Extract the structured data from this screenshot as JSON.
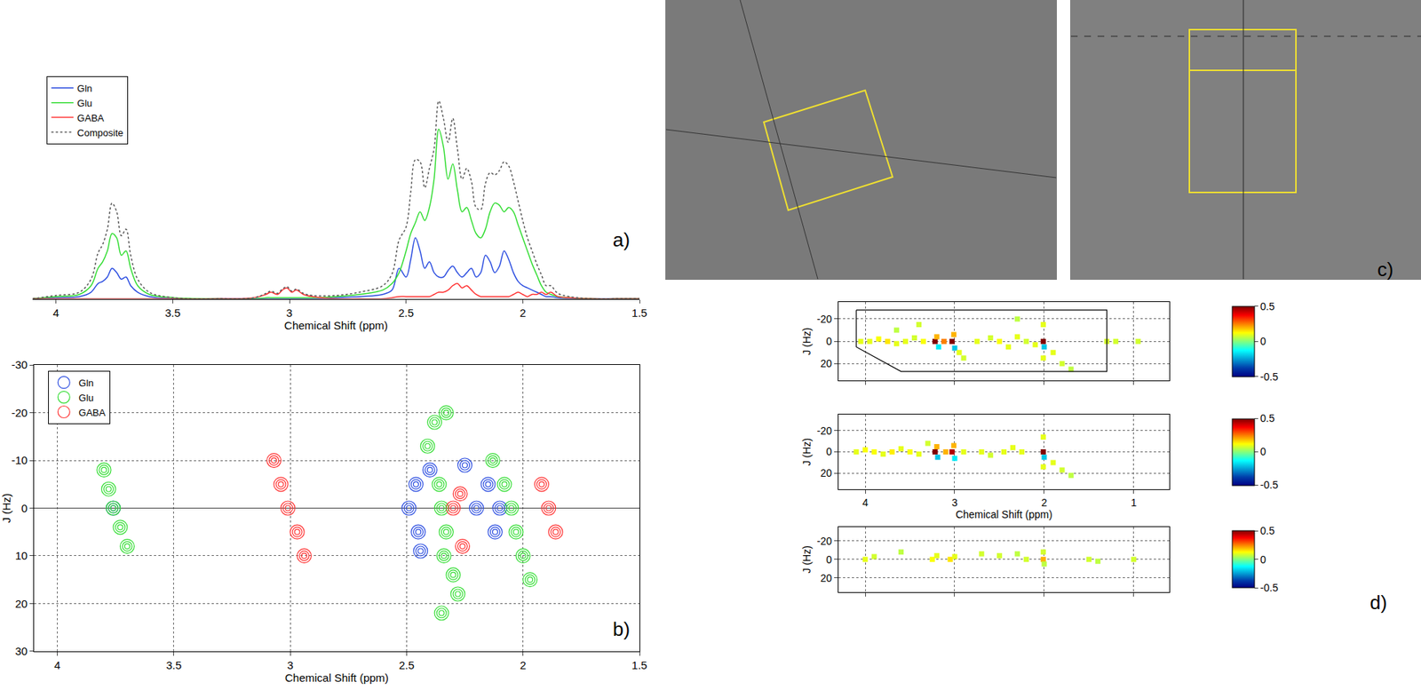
{
  "chart_data": [
    {
      "type": "line",
      "label": "a)",
      "x_label": "Chemical Shift (ppm)",
      "x": [
        4.1,
        4.0,
        3.9,
        3.85,
        3.82,
        3.8,
        3.78,
        3.76,
        3.74,
        3.72,
        3.7,
        3.68,
        3.65,
        3.6,
        3.5,
        3.3,
        3.15,
        3.1,
        3.08,
        3.05,
        3.03,
        3.01,
        2.99,
        2.97,
        2.94,
        2.9,
        2.8,
        2.7,
        2.6,
        2.56,
        2.53,
        2.5,
        2.48,
        2.46,
        2.44,
        2.42,
        2.4,
        2.38,
        2.36,
        2.34,
        2.32,
        2.3,
        2.28,
        2.26,
        2.24,
        2.22,
        2.2,
        2.18,
        2.16,
        2.14,
        2.12,
        2.1,
        2.08,
        2.06,
        2.04,
        2.02,
        2.0,
        1.98,
        1.96,
        1.94,
        1.92,
        1.9,
        1.88,
        1.85,
        1.8,
        1.7,
        1.6,
        1.5
      ],
      "series": [
        {
          "name": "Gln",
          "color": "#2b4de0",
          "line_style": "solid",
          "values": [
            0,
            0.005,
            0.01,
            0.03,
            0.07,
            0.08,
            0.1,
            0.14,
            0.12,
            0.09,
            0.1,
            0.06,
            0.03,
            0.01,
            0,
            0,
            0,
            0,
            0,
            0,
            0,
            0,
            0,
            0,
            0,
            0,
            0.005,
            0.01,
            0.02,
            0.04,
            0.14,
            0.1,
            0.18,
            0.28,
            0.22,
            0.14,
            0.17,
            0.12,
            0.1,
            0.1,
            0.13,
            0.15,
            0.12,
            0.1,
            0.12,
            0.14,
            0.1,
            0.12,
            0.2,
            0.17,
            0.12,
            0.15,
            0.22,
            0.18,
            0.12,
            0.08,
            0.06,
            0.05,
            0.04,
            0.03,
            0.02,
            0.01,
            0.01,
            0.005,
            0,
            0,
            0,
            0
          ]
        },
        {
          "name": "Glu",
          "color": "#33dd33",
          "line_style": "solid",
          "values": [
            0,
            0.01,
            0.02,
            0.06,
            0.14,
            0.17,
            0.22,
            0.3,
            0.28,
            0.2,
            0.22,
            0.14,
            0.06,
            0.02,
            0.005,
            0,
            0,
            0.005,
            0.005,
            0.005,
            0.005,
            0.005,
            0.005,
            0.005,
            0.005,
            0.005,
            0.01,
            0.02,
            0.04,
            0.07,
            0.12,
            0.22,
            0.3,
            0.35,
            0.4,
            0.36,
            0.42,
            0.55,
            0.78,
            0.7,
            0.55,
            0.62,
            0.5,
            0.4,
            0.42,
            0.36,
            0.3,
            0.28,
            0.32,
            0.4,
            0.44,
            0.43,
            0.4,
            0.42,
            0.4,
            0.34,
            0.28,
            0.22,
            0.16,
            0.11,
            0.06,
            0.03,
            0.02,
            0.01,
            0.005,
            0,
            0,
            0
          ]
        },
        {
          "name": "GABA",
          "color": "#ff3333",
          "line_style": "solid",
          "values": [
            0,
            0,
            0,
            0,
            0,
            0,
            0,
            0,
            0,
            0,
            0,
            0,
            0,
            0,
            0,
            0,
            0.005,
            0.02,
            0.03,
            0.02,
            0.04,
            0.05,
            0.03,
            0.04,
            0.02,
            0.01,
            0,
            0,
            0,
            0.005,
            0.01,
            0.01,
            0.01,
            0.01,
            0.01,
            0.01,
            0.01,
            0.02,
            0.03,
            0.03,
            0.04,
            0.06,
            0.07,
            0.05,
            0.06,
            0.04,
            0.02,
            0.01,
            0.01,
            0.01,
            0.01,
            0.01,
            0.01,
            0.01,
            0.02,
            0.03,
            0.02,
            0.01,
            0.02,
            0.02,
            0.03,
            0.02,
            0.03,
            0.01,
            0.005,
            0,
            0,
            0
          ]
        },
        {
          "name": "Composite",
          "color": "#555555",
          "line_style": "dot",
          "values": [
            0,
            0.015,
            0.03,
            0.09,
            0.21,
            0.25,
            0.32,
            0.44,
            0.4,
            0.29,
            0.32,
            0.2,
            0.09,
            0.03,
            0.005,
            0,
            0.005,
            0.025,
            0.035,
            0.025,
            0.045,
            0.055,
            0.035,
            0.045,
            0.025,
            0.015,
            0.015,
            0.03,
            0.06,
            0.115,
            0.27,
            0.33,
            0.49,
            0.64,
            0.63,
            0.51,
            0.6,
            0.69,
            0.91,
            0.83,
            0.72,
            0.83,
            0.69,
            0.55,
            0.6,
            0.54,
            0.42,
            0.41,
            0.53,
            0.58,
            0.57,
            0.59,
            0.63,
            0.61,
            0.54,
            0.45,
            0.36,
            0.28,
            0.22,
            0.16,
            0.11,
            0.06,
            0.06,
            0.025,
            0.01,
            0,
            0,
            0
          ]
        }
      ],
      "xlim": [
        4.1,
        1.5
      ],
      "xticks": [
        4,
        3.5,
        3,
        2.5,
        2,
        1.5
      ],
      "ylim": [
        0,
        1.05
      ],
      "tick_labels": "x",
      "legend": "top left"
    },
    {
      "type": "contour",
      "label": "b)",
      "x_label": "Chemical Shift (ppm)",
      "y_label": "J (Hz)",
      "series": [
        {
          "name": "Gln",
          "color": "#2b4de0",
          "peaks": [
            [
              3.76,
              0
            ],
            [
              2.49,
              0
            ],
            [
              2.46,
              -5
            ],
            [
              2.45,
              5
            ],
            [
              2.44,
              9
            ],
            [
              2.4,
              -8
            ],
            [
              2.25,
              -9
            ],
            [
              2.2,
              0
            ],
            [
              2.15,
              -5
            ],
            [
              2.12,
              5
            ],
            [
              2.1,
              0
            ]
          ]
        },
        {
          "name": "Glu",
          "color": "#33dd33",
          "peaks": [
            [
              3.8,
              -8
            ],
            [
              3.78,
              -4
            ],
            [
              3.76,
              0
            ],
            [
              3.73,
              4
            ],
            [
              3.7,
              8
            ],
            [
              2.41,
              -13
            ],
            [
              2.38,
              -18
            ],
            [
              2.36,
              -5
            ],
            [
              2.35,
              0
            ],
            [
              2.33,
              5
            ],
            [
              2.34,
              10
            ],
            [
              2.3,
              14
            ],
            [
              2.28,
              18
            ],
            [
              2.33,
              -20
            ],
            [
              2.13,
              -10
            ],
            [
              2.08,
              -5
            ],
            [
              2.05,
              0
            ],
            [
              2.03,
              5
            ],
            [
              2.0,
              10
            ],
            [
              1.97,
              15
            ],
            [
              2.35,
              22
            ]
          ]
        },
        {
          "name": "GABA",
          "color": "#ff3333",
          "peaks": [
            [
              3.07,
              -10
            ],
            [
              3.04,
              -5
            ],
            [
              3.01,
              0
            ],
            [
              2.97,
              5
            ],
            [
              2.94,
              10
            ],
            [
              2.3,
              0
            ],
            [
              2.27,
              -3
            ],
            [
              2.26,
              8
            ],
            [
              1.92,
              -5
            ],
            [
              1.89,
              0
            ],
            [
              1.86,
              5
            ]
          ]
        }
      ],
      "xlim": [
        4.1,
        1.5
      ],
      "xticks": [
        4,
        3.5,
        3,
        2.5,
        2,
        1.5
      ],
      "ylim": [
        30,
        -30
      ],
      "yticks": [
        -30,
        -20,
        -10,
        0,
        10,
        20,
        30
      ],
      "grid": true,
      "legend": "top left"
    },
    {
      "type": "image",
      "label": "c)"
    },
    {
      "type": "heatmap",
      "y_label": "J (Hz)",
      "cells": [
        [
          4.05,
          0,
          0.1
        ],
        [
          3.95,
          0,
          0.1
        ],
        [
          3.85,
          -2,
          0.12
        ],
        [
          3.75,
          0,
          0.15
        ],
        [
          3.65,
          2,
          0.1
        ],
        [
          3.55,
          0,
          0.1
        ],
        [
          3.45,
          -3,
          0.08
        ],
        [
          3.35,
          0,
          0.12
        ],
        [
          3.22,
          0,
          0.5
        ],
        [
          3.2,
          -4,
          0.2
        ],
        [
          3.18,
          5,
          -0.15
        ],
        [
          3.12,
          0,
          0.25
        ],
        [
          3.03,
          0,
          0.5
        ],
        [
          3.01,
          -6,
          0.2
        ],
        [
          3.0,
          6,
          -0.2
        ],
        [
          2.95,
          10,
          0.1
        ],
        [
          2.9,
          15,
          0.08
        ],
        [
          2.75,
          0,
          0.1
        ],
        [
          2.6,
          -3,
          0.08
        ],
        [
          2.5,
          0,
          0.12
        ],
        [
          2.4,
          5,
          0.1
        ],
        [
          2.3,
          -4,
          0.1
        ],
        [
          2.2,
          0,
          0.08
        ],
        [
          2.1,
          3,
          0.1
        ],
        [
          2.01,
          0,
          0.5
        ],
        [
          2.01,
          -15,
          0.1
        ],
        [
          2.01,
          15,
          0.1
        ],
        [
          2.0,
          5,
          -0.2
        ],
        [
          1.9,
          10,
          0.1
        ],
        [
          1.8,
          20,
          0.08
        ],
        [
          1.7,
          25,
          0.06
        ],
        [
          1.3,
          0,
          0.08
        ],
        [
          1.2,
          0,
          0.08
        ],
        [
          0.95,
          0,
          0.08
        ],
        [
          3.4,
          -15,
          0.08
        ],
        [
          2.3,
          -20,
          0.06
        ],
        [
          3.65,
          -10,
          0.06
        ]
      ],
      "region": {
        "x": [
          4.1,
          1.3,
          1.3,
          3.6,
          4.1,
          4.1
        ],
        "y": [
          -28,
          -28,
          27,
          27,
          5,
          -28
        ]
      },
      "xlim": [
        4.3,
        0.6
      ],
      "xticks": [
        4,
        3,
        2,
        1
      ],
      "ylim": [
        35,
        -35
      ],
      "yticks": [
        -20,
        0,
        20
      ],
      "colorbar": {
        "range": [
          -0.5,
          0.5
        ],
        "ticks": [
          -0.5,
          0,
          0.5
        ]
      },
      "grid": true,
      "tick_labels": "y"
    },
    {
      "type": "heatmap",
      "x_label": "Chemical Shift (ppm)",
      "y_label": "J (Hz)",
      "cells": [
        [
          4.1,
          0,
          0.1
        ],
        [
          4.0,
          -2,
          0.12
        ],
        [
          3.9,
          0,
          0.12
        ],
        [
          3.8,
          2,
          0.1
        ],
        [
          3.7,
          0,
          0.14
        ],
        [
          3.6,
          -3,
          0.1
        ],
        [
          3.5,
          0,
          0.12
        ],
        [
          3.4,
          2,
          0.1
        ],
        [
          3.22,
          0,
          0.5
        ],
        [
          3.2,
          -5,
          0.2
        ],
        [
          3.19,
          5,
          -0.2
        ],
        [
          3.1,
          0,
          0.2
        ],
        [
          3.03,
          0,
          0.45
        ],
        [
          3.01,
          -6,
          0.2
        ],
        [
          3.0,
          6,
          -0.15
        ],
        [
          2.9,
          0,
          0.1
        ],
        [
          2.7,
          0,
          0.1
        ],
        [
          2.6,
          3,
          0.08
        ],
        [
          2.45,
          0,
          0.1
        ],
        [
          2.35,
          -4,
          0.1
        ],
        [
          2.25,
          0,
          0.1
        ],
        [
          2.01,
          0,
          0.5
        ],
        [
          2.01,
          -14,
          0.1
        ],
        [
          2.01,
          14,
          0.1
        ],
        [
          2.0,
          5,
          -0.2
        ],
        [
          1.9,
          10,
          0.1
        ],
        [
          1.8,
          17,
          0.08
        ],
        [
          1.7,
          22,
          0.06
        ],
        [
          3.3,
          -8,
          0.08
        ]
      ],
      "xlim": [
        4.3,
        0.6
      ],
      "xticks": [
        4,
        3,
        2,
        1
      ],
      "ylim": [
        35,
        -35
      ],
      "yticks": [
        -20,
        0,
        20
      ],
      "colorbar": {
        "range": [
          -0.5,
          0.5
        ],
        "ticks": [
          -0.5,
          0,
          0.5
        ]
      },
      "grid": true
    },
    {
      "type": "heatmap",
      "label": "d)",
      "y_label": "J (Hz)",
      "cells": [
        [
          4.0,
          0,
          0.1
        ],
        [
          3.9,
          -3,
          0.08
        ],
        [
          3.6,
          -8,
          0.06
        ],
        [
          3.25,
          0,
          0.12
        ],
        [
          3.2,
          -4,
          0.1
        ],
        [
          3.05,
          0,
          0.15
        ],
        [
          3.0,
          -3,
          0.1
        ],
        [
          2.7,
          -6,
          0.08
        ],
        [
          2.5,
          -4,
          0.08
        ],
        [
          2.3,
          -6,
          0.06
        ],
        [
          2.2,
          0,
          0.08
        ],
        [
          2.01,
          0,
          0.2
        ],
        [
          2.01,
          -8,
          0.08
        ],
        [
          2.0,
          5,
          0.06
        ],
        [
          1.5,
          0,
          0.08
        ],
        [
          1.4,
          2,
          0.06
        ],
        [
          1.0,
          0,
          0.08
        ]
      ],
      "xlim": [
        4.3,
        0.6
      ],
      "xticks": [
        4,
        3,
        2,
        1
      ],
      "ylim": [
        35,
        -35
      ],
      "yticks": [
        -20,
        0,
        20
      ],
      "colorbar": {
        "range": [
          -0.5,
          0.5
        ],
        "ticks": [
          -0.5,
          0,
          0.5
        ]
      },
      "grid": true,
      "tick_labels": "y"
    }
  ]
}
